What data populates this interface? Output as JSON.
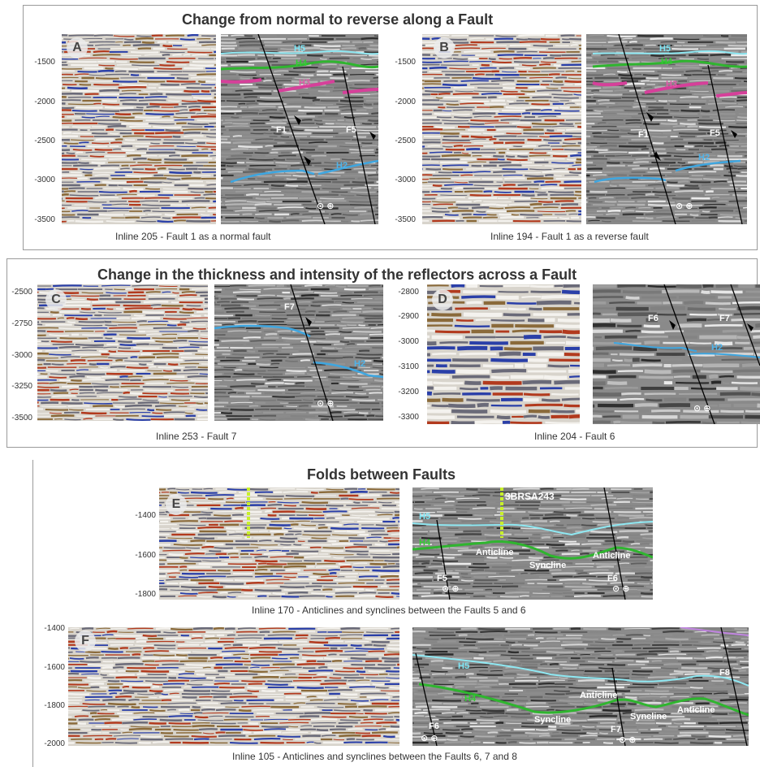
{
  "sections": {
    "s1": {
      "title": "Change from normal to reverse along a Fault",
      "panels": [
        {
          "badge": "A",
          "caption": "Inline 205 - Fault 1 as a normal fault",
          "ticks": [
            "-1500",
            "-2000",
            "-2500",
            "-3000",
            "-3500"
          ],
          "labels": {
            "h5": "H5",
            "h4": "H4",
            "h3": "H3",
            "f1": "F1",
            "f5": "F5",
            "h2": "H2"
          }
        },
        {
          "badge": "B",
          "caption": "Inline 194 - Fault 1 as a reverse fault",
          "ticks": [
            "-1500",
            "-2000",
            "-2500",
            "-3000",
            "-3500"
          ],
          "labels": {
            "h5": "H5",
            "h4": "H4",
            "h3": "H3",
            "f1": "F1",
            "f5": "F5",
            "h2": "H2"
          }
        }
      ]
    },
    "s2": {
      "title": "Change in the thickness and intensity of the reflectors across a Fault",
      "panels": [
        {
          "badge": "C",
          "caption": "Inline 253 - Fault 7",
          "ticks": [
            "-2500",
            "-2750",
            "-3000",
            "-3250",
            "-3500"
          ],
          "labels": {
            "f7": "F7",
            "h2": "H2"
          }
        },
        {
          "badge": "D",
          "caption": "Inline 204 - Fault 6",
          "ticks": [
            "-2800",
            "-2900",
            "-3000",
            "-3100",
            "-3200",
            "-3300"
          ],
          "labels": {
            "f6": "F6",
            "f7": "F7",
            "h2": "H2"
          }
        }
      ]
    },
    "s3": {
      "title": "Folds between Faults",
      "panels": [
        {
          "badge": "E",
          "caption": "Inline 170 - Anticlines and synclines between the Faults 5 and 6",
          "ticks": [
            "-1400",
            "-1600",
            "-1800"
          ],
          "labels": {
            "well": "3BRSA243",
            "h5": "H5",
            "h4": "H4",
            "anticline1": "Anticline",
            "syncline": "Syncline",
            "anticline2": "Anticline",
            "f5": "F5",
            "f6": "F6"
          }
        },
        {
          "badge": "F",
          "caption": "Inline 105 - Anticlines and synclines between the Faults 6, 7 and 8",
          "ticks": [
            "-1400",
            "-1600",
            "-1800",
            "-2000"
          ],
          "labels": {
            "h5": "H5",
            "h4": "H4",
            "f8": "F8",
            "anticline1": "Anticline",
            "syncline1": "Syncline",
            "syncline2": "Syncline",
            "anticline2": "Anticline",
            "f6": "F6",
            "f7": "F7"
          }
        }
      ]
    }
  },
  "colors": {
    "h5": "#8fe8f2",
    "h4": "#2fb52f",
    "h3": "#d6409a",
    "h2": "#3ea6e0",
    "fault": "#000000",
    "well": "#c8f02a",
    "top": "#c084e0"
  }
}
